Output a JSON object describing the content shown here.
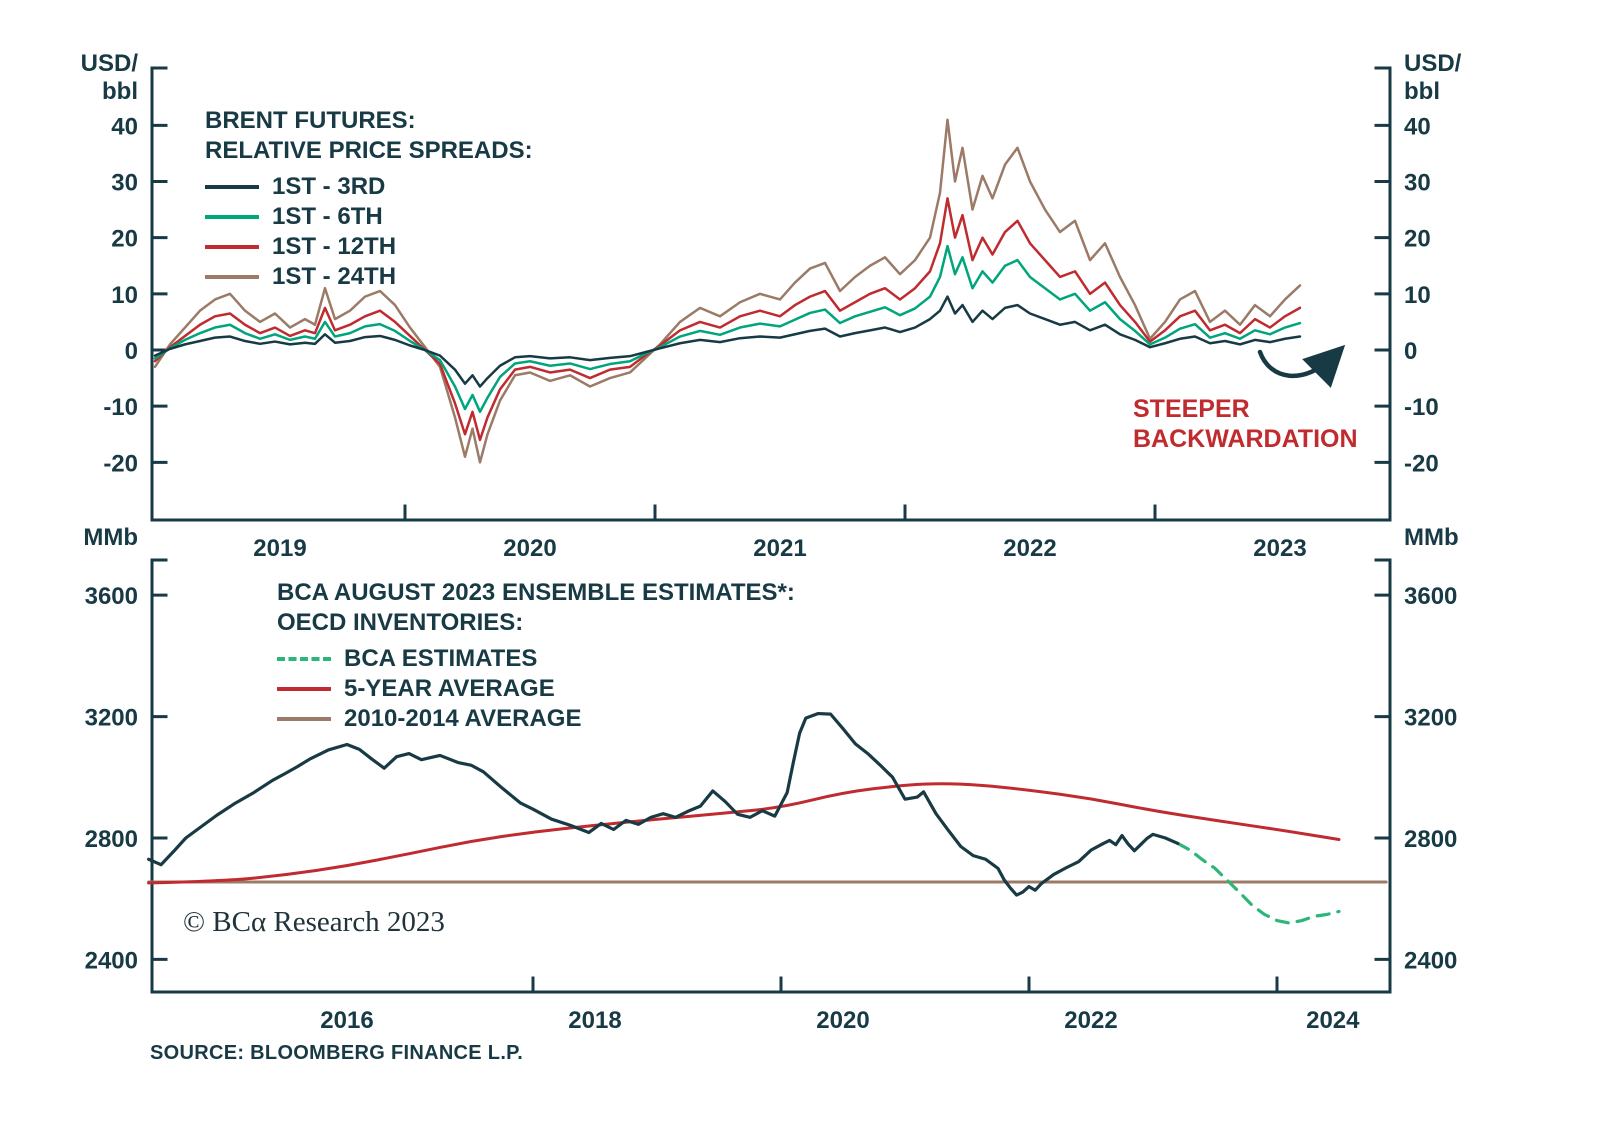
{
  "colors": {
    "axis": "#173a44",
    "navy": "#173a44",
    "teal": "#00a57c",
    "red": "#bf2b2f",
    "brown": "#9b7b67",
    "estimate_green": "#2eb579",
    "annotation_red": "#bf2b2f",
    "background": "#ffffff"
  },
  "footer": {
    "source": "SOURCE: BLOOMBERG FINANCE L.P."
  },
  "chart_data": [
    {
      "id": "brent_futures_spreads",
      "type": "line",
      "title_lines": [
        "BRENT FUTURES:",
        "RELATIVE PRICE SPREADS:"
      ],
      "y_axis_unit_lines": [
        "USD/",
        "bbl"
      ],
      "yticks": [
        40,
        30,
        20,
        10,
        0,
        -10,
        -20
      ],
      "ylim": [
        -30,
        50
      ],
      "xlim": [
        2019.0,
        2023.94
      ],
      "grid": false,
      "legend_position": "top-left",
      "x_tick_years": [
        2020,
        2021,
        2022,
        2023
      ],
      "x_labels": [
        {
          "text": "2019",
          "year": 2019.5
        },
        {
          "text": "2020",
          "year": 2020.5
        },
        {
          "text": "2021",
          "year": 2021.5
        },
        {
          "text": "2022",
          "year": 2022.5
        },
        {
          "text": "2023",
          "year": 2023.5
        }
      ],
      "annotation": {
        "lines": [
          "STEEPER",
          "BACKWARDATION"
        ],
        "color": "#bf2b2f"
      },
      "x": [
        2019.0,
        2019.06,
        2019.12,
        2019.18,
        2019.24,
        2019.3,
        2019.36,
        2019.42,
        2019.48,
        2019.54,
        2019.6,
        2019.64,
        2019.68,
        2019.72,
        2019.78,
        2019.84,
        2019.9,
        2019.96,
        2020.02,
        2020.08,
        2020.14,
        2020.2,
        2020.24,
        2020.27,
        2020.3,
        2020.33,
        2020.38,
        2020.44,
        2020.5,
        2020.58,
        2020.66,
        2020.74,
        2020.82,
        2020.9,
        2020.96,
        2021.02,
        2021.1,
        2021.18,
        2021.26,
        2021.34,
        2021.42,
        2021.5,
        2021.56,
        2021.62,
        2021.68,
        2021.74,
        2021.8,
        2021.86,
        2021.92,
        2021.98,
        2022.04,
        2022.1,
        2022.14,
        2022.17,
        2022.2,
        2022.23,
        2022.27,
        2022.31,
        2022.35,
        2022.4,
        2022.45,
        2022.5,
        2022.56,
        2022.62,
        2022.68,
        2022.74,
        2022.8,
        2022.86,
        2022.92,
        2022.98,
        2023.04,
        2023.1,
        2023.16,
        2023.22,
        2023.28,
        2023.34,
        2023.4,
        2023.46,
        2023.52,
        2023.58
      ],
      "series": [
        {
          "name": "1ST - 3RD",
          "color": "#173a44",
          "width": 2.5,
          "values": [
            -1,
            0.2,
            1,
            1.6,
            2.2,
            2.4,
            1.6,
            1.1,
            1.5,
            1,
            1.3,
            1.1,
            2.8,
            1.3,
            1.6,
            2.3,
            2.5,
            1.8,
            0.8,
            0,
            -1,
            -3.5,
            -6,
            -4.5,
            -6.5,
            -5,
            -2.8,
            -1.3,
            -1.1,
            -1.5,
            -1.3,
            -1.8,
            -1.4,
            -1.1,
            -0.4,
            0.3,
            1.2,
            1.8,
            1.4,
            2.1,
            2.4,
            2.2,
            2.8,
            3.4,
            3.8,
            2.4,
            3,
            3.5,
            4,
            3.2,
            4,
            5.5,
            7,
            9.5,
            6.5,
            8,
            5,
            7,
            5.5,
            7.5,
            8,
            6.5,
            5.5,
            4.5,
            5,
            3.5,
            4.5,
            2.8,
            1.8,
            0.5,
            1.2,
            2,
            2.4,
            1.2,
            1.6,
            1,
            1.8,
            1.4,
            2,
            2.4
          ]
        },
        {
          "name": "1ST - 6TH",
          "color": "#00a57c",
          "width": 2.5,
          "values": [
            -1.5,
            0.3,
            1.8,
            3,
            4,
            4.5,
            3,
            2,
            2.8,
            1.8,
            2.4,
            2,
            5,
            2.4,
            3,
            4.2,
            4.6,
            3.4,
            1.6,
            0,
            -1.8,
            -6.5,
            -10.5,
            -8,
            -11,
            -8.5,
            -4.8,
            -2.4,
            -2,
            -2.8,
            -2.4,
            -3.4,
            -2.5,
            -2,
            -0.7,
            0.5,
            2.4,
            3.4,
            2.7,
            4,
            4.7,
            4.2,
            5.4,
            6.6,
            7.2,
            4.8,
            6,
            6.8,
            7.6,
            6.2,
            7.4,
            9.5,
            13,
            18.5,
            13.5,
            16.5,
            11,
            14,
            12,
            15,
            16,
            13,
            11,
            9,
            10,
            7,
            8.5,
            5.5,
            3.4,
            1,
            2.2,
            3.8,
            4.6,
            2.2,
            3,
            2,
            3.5,
            2.8,
            4,
            4.8
          ]
        },
        {
          "name": "1ST - 12TH",
          "color": "#bf2b2f",
          "width": 2.5,
          "values": [
            -2,
            0.5,
            2.5,
            4.5,
            6,
            6.5,
            4.5,
            3,
            4,
            2.5,
            3.5,
            3,
            7.5,
            3.5,
            4.5,
            6,
            7,
            5,
            2.5,
            0,
            -2.5,
            -9.5,
            -15,
            -11,
            -16,
            -12,
            -7,
            -3.5,
            -3,
            -4,
            -3.5,
            -5,
            -3.5,
            -3,
            -1,
            0.8,
            3.5,
            5,
            4,
            6,
            7,
            6,
            8,
            9.5,
            10.5,
            7,
            8.5,
            10,
            11,
            9,
            11,
            14,
            19,
            27,
            20,
            24,
            16,
            20,
            17,
            21,
            23,
            19,
            16,
            13,
            14,
            10,
            12,
            8,
            5,
            1.5,
            3.5,
            6,
            7,
            3.5,
            4.5,
            3,
            5.5,
            4,
            6,
            7.5
          ]
        },
        {
          "name": "1ST - 24TH",
          "color": "#9b7b67",
          "width": 2.5,
          "values": [
            -3,
            1,
            4,
            7,
            9,
            10,
            7,
            5,
            6.5,
            4,
            5.5,
            4.5,
            11,
            5.5,
            7,
            9.5,
            10.5,
            8,
            4,
            0.5,
            -3,
            -12,
            -19,
            -14,
            -20,
            -15,
            -9,
            -4.5,
            -4,
            -5.5,
            -4.5,
            -6.5,
            -5,
            -4,
            -1.5,
            1,
            5,
            7.5,
            6,
            8.5,
            10,
            9,
            12,
            14.5,
            15.5,
            10.5,
            13,
            15,
            16.5,
            13.5,
            16,
            20,
            28,
            41,
            30,
            36,
            25,
            31,
            27,
            33,
            36,
            30,
            25,
            21,
            23,
            16,
            19,
            13,
            8,
            2,
            5,
            9,
            10.5,
            5,
            7,
            4.5,
            8,
            6,
            9,
            11.5
          ]
        }
      ]
    },
    {
      "id": "oecd_inventories",
      "type": "line",
      "title_lines": [
        "BCA AUGUST 2023 ENSEMBLE ESTIMATES*:",
        "OECD INVENTORIES:"
      ],
      "y_axis_unit": "MMb",
      "yticks": [
        3600,
        3200,
        2800,
        2400
      ],
      "ylim": [
        2290,
        3715
      ],
      "xlim": [
        2014.93,
        2024.91
      ],
      "grid": false,
      "legend_position": "top-left",
      "copyright": "© BCα Research 2023",
      "x_tick_years": [
        2018,
        2020,
        2022,
        2024
      ],
      "x_labels": [
        {
          "text": "2016",
          "year": 2016.5
        },
        {
          "text": "2018",
          "year": 2018.5
        },
        {
          "text": "2020",
          "year": 2020.5
        },
        {
          "text": "2022",
          "year": 2022.5
        },
        {
          "text": "2024",
          "year": 2024.45
        }
      ],
      "series": [
        {
          "name": "OECD INVENTORIES",
          "color": "#173a44",
          "width": 3.2,
          "in_legend": false,
          "x": [
            2014.9,
            2015.0,
            2015.1,
            2015.2,
            2015.3,
            2015.45,
            2015.6,
            2015.75,
            2015.9,
            2016.0,
            2016.1,
            2016.2,
            2016.35,
            2016.5,
            2016.6,
            2016.7,
            2016.8,
            2016.9,
            2017.0,
            2017.1,
            2017.25,
            2017.4,
            2017.5,
            2017.6,
            2017.75,
            2017.9,
            2018.0,
            2018.15,
            2018.3,
            2018.45,
            2018.55,
            2018.65,
            2018.75,
            2018.85,
            2018.95,
            2019.05,
            2019.15,
            2019.25,
            2019.35,
            2019.45,
            2019.55,
            2019.65,
            2019.75,
            2019.85,
            2019.95,
            2020.05,
            2020.1,
            2020.15,
            2020.2,
            2020.3,
            2020.4,
            2020.5,
            2020.6,
            2020.7,
            2020.8,
            2020.9,
            2021.0,
            2021.1,
            2021.15,
            2021.25,
            2021.35,
            2021.45,
            2021.55,
            2021.65,
            2021.75,
            2021.8,
            2021.85,
            2021.9,
            2021.95,
            2022.0,
            2022.05,
            2022.1,
            2022.2,
            2022.3,
            2022.4,
            2022.5,
            2022.6,
            2022.65,
            2022.7,
            2022.75,
            2022.8,
            2022.85,
            2022.9,
            2022.95,
            2023.0,
            2023.1,
            2023.2
          ],
          "values": [
            2730,
            2712,
            2755,
            2800,
            2830,
            2875,
            2915,
            2950,
            2990,
            3012,
            3035,
            3060,
            3090,
            3108,
            3092,
            3060,
            3030,
            3068,
            3078,
            3058,
            3072,
            3048,
            3040,
            3018,
            2965,
            2915,
            2895,
            2862,
            2842,
            2818,
            2848,
            2828,
            2858,
            2845,
            2868,
            2880,
            2868,
            2888,
            2905,
            2955,
            2920,
            2878,
            2868,
            2890,
            2872,
            2950,
            3050,
            3145,
            3195,
            3210,
            3208,
            3160,
            3110,
            3078,
            3040,
            3000,
            2928,
            2935,
            2952,
            2880,
            2825,
            2772,
            2742,
            2730,
            2700,
            2662,
            2635,
            2612,
            2622,
            2640,
            2628,
            2650,
            2680,
            2702,
            2722,
            2760,
            2782,
            2792,
            2778,
            2808,
            2780,
            2758,
            2778,
            2798,
            2812,
            2800,
            2782
          ]
        },
        {
          "name": "BCA ESTIMATES",
          "color": "#2eb579",
          "width": 3.2,
          "dash": [
            12,
            9
          ],
          "x": [
            2023.2,
            2023.3,
            2023.4,
            2023.5,
            2023.6,
            2023.7,
            2023.8,
            2023.9,
            2024.0,
            2024.1,
            2024.2,
            2024.3,
            2024.4,
            2024.5
          ],
          "values": [
            2782,
            2760,
            2728,
            2700,
            2660,
            2620,
            2578,
            2548,
            2528,
            2520,
            2528,
            2542,
            2548,
            2558
          ]
        },
        {
          "name": "5-YEAR AVERAGE",
          "color": "#bf2b2f",
          "width": 3,
          "smooth": true,
          "x": [
            2014.9,
            2015.5,
            2016.0,
            2016.5,
            2017.0,
            2017.5,
            2018.0,
            2018.5,
            2019.0,
            2019.5,
            2020.0,
            2020.5,
            2021.0,
            2021.3,
            2021.6,
            2022.0,
            2022.5,
            2023.0,
            2023.5,
            2024.0,
            2024.5
          ],
          "values": [
            2652,
            2658,
            2678,
            2708,
            2748,
            2790,
            2820,
            2842,
            2862,
            2880,
            2900,
            2950,
            2975,
            2980,
            2975,
            2958,
            2930,
            2890,
            2858,
            2828,
            2795
          ]
        },
        {
          "name": "2010-2014 AVERAGE",
          "color": "#9b7b67",
          "width": 3,
          "x": [
            2014.9,
            2024.88
          ],
          "values": [
            2655,
            2655
          ]
        }
      ]
    }
  ]
}
